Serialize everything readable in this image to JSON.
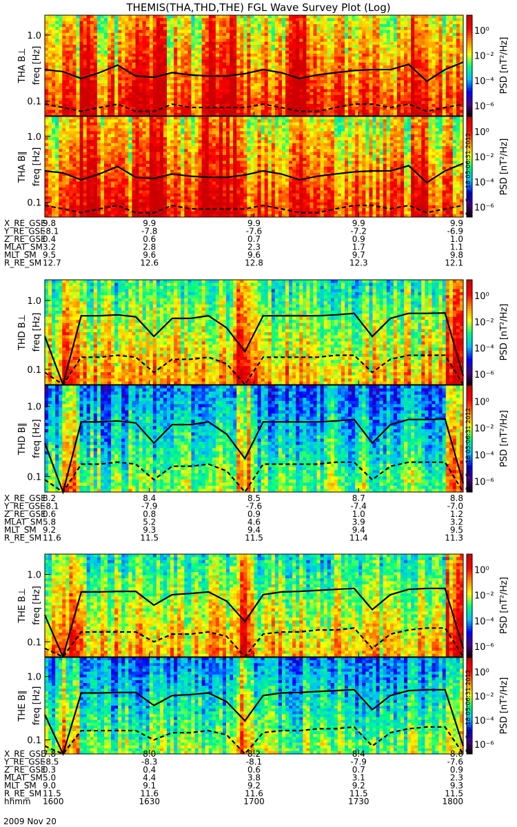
{
  "title": "THEMIS(THA,THD,THE) FGL Wave Survey Plot (Log)",
  "colorbar": {
    "label": "PSD [nT²/Hz]",
    "ticks": [
      "10⁰",
      "10⁻²",
      "10⁻⁴",
      "10⁻⁶"
    ],
    "colors": [
      "#000000",
      "#4b0082",
      "#0000ff",
      "#00bfff",
      "#00ff7f",
      "#ffff00",
      "#ff8c00",
      "#ff0000",
      "#cc0000"
    ]
  },
  "stamp": "Sun Sep 18 05:06:31 2012",
  "panels": [
    {
      "label": "THA B⊥",
      "ylabel": "freq [Hz]",
      "ticks": [
        "1.0",
        "0.1"
      ]
    },
    {
      "label": "THA B∥",
      "ylabel": "freq [Hz]",
      "ticks": [
        "1.0",
        "0.1"
      ]
    },
    {
      "label": "THD B⊥",
      "ylabel": "freq [Hz]",
      "ticks": [
        "1.0",
        "0.1"
      ]
    },
    {
      "label": "THD B∥",
      "ylabel": "freq [Hz]",
      "ticks": [
        "1.0",
        "0.1"
      ]
    },
    {
      "label": "THE B⊥",
      "ylabel": "freq [Hz]",
      "ticks": [
        "1.0",
        "0.1"
      ]
    },
    {
      "label": "THE B∥",
      "ylabel": "freq [Hz]",
      "ticks": [
        "1.0",
        "0.1"
      ]
    }
  ],
  "ephemeris": [
    {
      "rows": [
        [
          "X_RE_GSE",
          "9.8",
          "9.9",
          "9.9",
          "9.9",
          "9.9"
        ],
        [
          "Y_RE_GSE",
          "-8.1",
          "-7.8",
          "-7.6",
          "-7.2",
          "-6.9"
        ],
        [
          "Z_RE_GSE",
          "0.4",
          "0.6",
          "0.7",
          "0.9",
          "1.0"
        ],
        [
          "MLAT_SM",
          "3.2",
          "2.8",
          "2.3",
          "1.7",
          "1.1"
        ],
        [
          "MLT_SM",
          "9.5",
          "9.6",
          "9.6",
          "9.7",
          "9.8"
        ],
        [
          "R_RE_SM",
          "12.7",
          "12.6",
          "12.8",
          "12.3",
          "12.1"
        ]
      ]
    },
    {
      "rows": [
        [
          "X_RE_GSE",
          "8.2",
          "8.4",
          "8.5",
          "8.7",
          "8.8"
        ],
        [
          "Y_RE_GSE",
          "-8.1",
          "-7.9",
          "-7.6",
          "-7.4",
          "-7.0"
        ],
        [
          "Z_RE_GSE",
          "0.6",
          "0.8",
          "0.9",
          "1.0",
          "1.2"
        ],
        [
          "MLAT_SM",
          "5.8",
          "5.2",
          "4.6",
          "3.9",
          "3.2"
        ],
        [
          "MLT_SM",
          "9.2",
          "9.3",
          "9.4",
          "9.4",
          "9.5"
        ],
        [
          "R_RE_SM",
          "11.6",
          "11.5",
          "11.5",
          "11.4",
          "11.3"
        ]
      ]
    },
    {
      "rows": [
        [
          "X_RE_GSE",
          "7.8",
          "8.0",
          "8.2",
          "8.4",
          "8.6"
        ],
        [
          "Y_RE_GSE",
          "-8.5",
          "-8.3",
          "-8.1",
          "-7.9",
          "-7.6"
        ],
        [
          "Z_RE_GSE",
          "0.3",
          "0.4",
          "0.6",
          "0.7",
          "0.9"
        ],
        [
          "MLAT_SM",
          "5.0",
          "4.4",
          "3.8",
          "3.1",
          "2.3"
        ],
        [
          "MLT_SM",
          "9.0",
          "9.1",
          "9.2",
          "9.2",
          "9.3"
        ],
        [
          "R_RE_SM",
          "11.5",
          "11.6",
          "11.6",
          "11.5",
          "11.5"
        ],
        [
          "hhmm",
          "1600",
          "1630",
          "1700",
          "1730",
          "1800"
        ]
      ]
    }
  ],
  "date": "2009 Nov 20",
  "chart_data": {
    "type": "heatmap",
    "title": "THEMIS(THA,THD,THE) FGL Wave Survey Plot (Log)",
    "x": {
      "label": "hhmm",
      "ticks": [
        "1600",
        "1630",
        "1700",
        "1730",
        "1800"
      ]
    },
    "y": {
      "label": "freq [Hz]",
      "scale": "log",
      "ticks": [
        0.1,
        1.0
      ]
    },
    "z": {
      "label": "PSD [nT²/Hz]",
      "scale": "log",
      "range": [
        -6,
        1
      ]
    },
    "series": [
      {
        "name": "THA B⊥",
        "solid": [
          0.3,
          0.28,
          0.22,
          0.27,
          0.35,
          0.24,
          0.23,
          0.27,
          0.25,
          0.24,
          0.24,
          0.26,
          0.3,
          0.27,
          0.22,
          0.25,
          0.27,
          0.29,
          0.3,
          0.3,
          0.36,
          0.2,
          0.3,
          0.39
        ],
        "dashed": [
          0.09,
          0.08,
          0.07,
          0.08,
          0.09,
          0.07,
          0.07,
          0.09,
          0.08,
          0.08,
          0.08,
          0.08,
          0.09,
          0.08,
          0.07,
          0.07,
          0.08,
          0.09,
          0.09,
          0.08,
          0.09,
          0.07,
          0.08,
          0.09
        ]
      },
      {
        "name": "THA B∥",
        "solid": [
          0.3,
          0.28,
          0.22,
          0.27,
          0.35,
          0.24,
          0.23,
          0.27,
          0.25,
          0.24,
          0.24,
          0.26,
          0.3,
          0.27,
          0.22,
          0.25,
          0.27,
          0.29,
          0.3,
          0.3,
          0.36,
          0.2,
          0.3,
          0.39
        ],
        "dashed": [
          0.09,
          0.08,
          0.07,
          0.08,
          0.09,
          0.07,
          0.07,
          0.09,
          0.08,
          0.08,
          0.08,
          0.08,
          0.09,
          0.08,
          0.07,
          0.07,
          0.08,
          0.09,
          0.09,
          0.08,
          0.09,
          0.07,
          0.08,
          0.09
        ]
      },
      {
        "name": "THD B⊥",
        "solid": [
          0.3,
          0.06,
          0.6,
          0.6,
          0.62,
          0.58,
          0.3,
          0.55,
          0.55,
          0.6,
          0.4,
          0.18,
          0.6,
          0.6,
          0.6,
          0.6,
          0.62,
          0.65,
          0.3,
          0.55,
          0.65,
          0.65,
          0.66,
          0.08
        ],
        "dashed": [
          0.09,
          0.05,
          0.15,
          0.15,
          0.16,
          0.15,
          0.09,
          0.14,
          0.14,
          0.15,
          0.12,
          0.06,
          0.15,
          0.15,
          0.15,
          0.15,
          0.16,
          0.16,
          0.09,
          0.14,
          0.16,
          0.16,
          0.16,
          0.05
        ]
      },
      {
        "name": "THD B∥",
        "solid": [
          0.3,
          0.06,
          0.6,
          0.6,
          0.62,
          0.58,
          0.3,
          0.55,
          0.55,
          0.6,
          0.4,
          0.18,
          0.6,
          0.6,
          0.6,
          0.6,
          0.62,
          0.65,
          0.3,
          0.55,
          0.65,
          0.65,
          0.66,
          0.08
        ],
        "dashed": [
          0.09,
          0.05,
          0.15,
          0.15,
          0.16,
          0.15,
          0.09,
          0.14,
          0.14,
          0.15,
          0.12,
          0.06,
          0.15,
          0.15,
          0.15,
          0.15,
          0.16,
          0.16,
          0.09,
          0.14,
          0.16,
          0.16,
          0.16,
          0.05
        ]
      },
      {
        "name": "THE B⊥",
        "solid": [
          0.25,
          0.06,
          0.55,
          0.55,
          0.56,
          0.56,
          0.35,
          0.5,
          0.52,
          0.55,
          0.4,
          0.2,
          0.5,
          0.55,
          0.56,
          0.58,
          0.6,
          0.62,
          0.3,
          0.5,
          0.6,
          0.62,
          0.62,
          0.08
        ],
        "dashed": [
          0.08,
          0.05,
          0.14,
          0.14,
          0.14,
          0.14,
          0.1,
          0.13,
          0.13,
          0.14,
          0.12,
          0.06,
          0.13,
          0.14,
          0.14,
          0.15,
          0.15,
          0.16,
          0.08,
          0.13,
          0.15,
          0.16,
          0.16,
          0.05
        ]
      },
      {
        "name": "THE B∥",
        "solid": [
          0.25,
          0.06,
          0.55,
          0.55,
          0.56,
          0.56,
          0.35,
          0.5,
          0.52,
          0.55,
          0.4,
          0.2,
          0.5,
          0.55,
          0.56,
          0.58,
          0.6,
          0.62,
          0.3,
          0.5,
          0.6,
          0.62,
          0.62,
          0.08
        ],
        "dashed": [
          0.08,
          0.05,
          0.14,
          0.14,
          0.14,
          0.14,
          0.1,
          0.13,
          0.13,
          0.14,
          0.12,
          0.06,
          0.13,
          0.14,
          0.14,
          0.15,
          0.15,
          0.16,
          0.08,
          0.13,
          0.15,
          0.16,
          0.16,
          0.05
        ]
      }
    ]
  }
}
